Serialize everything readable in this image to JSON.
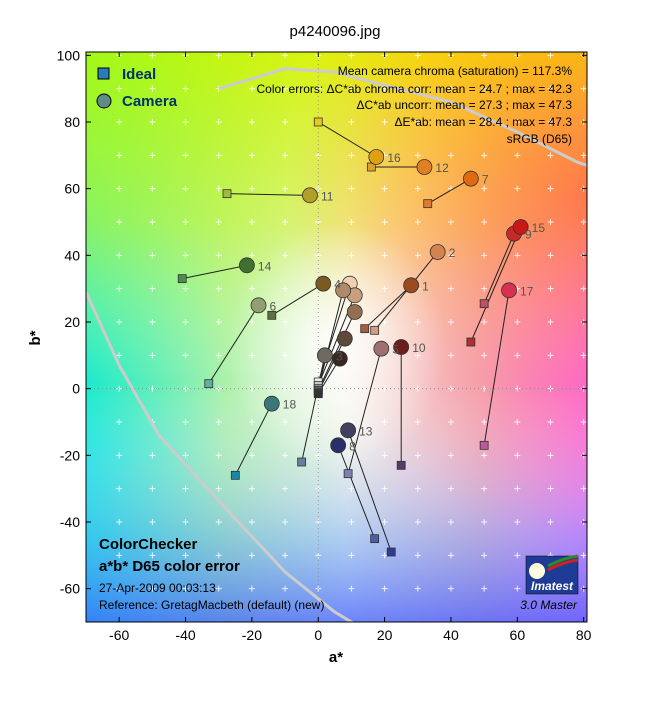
{
  "colors": {
    "ideal_legend": "#2a7abf",
    "camera_legend": "#5f8c84",
    "gamut_line": "#cccccc",
    "logo_blue": "#1e3c96",
    "logo_green": "#2c8a2c",
    "logo_red": "#cc2222"
  },
  "legend": {
    "ideal": "Ideal",
    "camera": "Camera"
  },
  "info": {
    "line1": "Mean camera chroma (saturation) = 117.3%",
    "line2": "Color errors: ΔC*ab chroma corr:  mean = 24.7 ;  max = 42.3",
    "line3": "ΔC*ab uncorr:  mean = 27.3 ;  max = 47.3",
    "line4": "ΔE*ab:  mean = 28.4 ;  max = 47.3",
    "line5": "sRGB (D65)"
  },
  "footer": {
    "title1": "ColorChecker",
    "title2": "a*b* D65 color error",
    "date": "27-Apr-2009 00:03:13",
    "reference": "Reference: GretagMacbeth (default) (new)",
    "version": "3.0  Master",
    "logo": "Imatest"
  },
  "chart_data": {
    "type": "scatter",
    "title": "p4240096.jpg",
    "xlabel": "a*",
    "ylabel": "b*",
    "xlim": [
      -70,
      81
    ],
    "ylim": [
      -70,
      101
    ],
    "xticks": [
      -60,
      -40,
      -20,
      0,
      20,
      40,
      60,
      80
    ],
    "yticks": [
      -60,
      -40,
      -20,
      0,
      20,
      40,
      60,
      80,
      100
    ],
    "grid": "white crosses at 10-unit spacing",
    "legend_position": "top-left",
    "gamut_boundary": [
      [
        [
          -30,
          90
        ],
        [
          -10,
          96
        ],
        [
          5,
          95
        ],
        [
          20,
          91
        ],
        [
          40,
          86
        ],
        [
          60,
          77
        ],
        [
          78,
          68
        ],
        [
          81,
          67
        ]
      ],
      [
        [
          -70,
          29
        ],
        [
          -60,
          7
        ],
        [
          -48,
          -14
        ],
        [
          -38,
          -25
        ],
        [
          -25,
          -39
        ],
        [
          -10,
          -55
        ],
        [
          5,
          -67
        ],
        [
          15,
          -73
        ]
      ]
    ],
    "patches": [
      {
        "id": "1",
        "ideal": [
          14.0,
          18.0
        ],
        "camera": [
          28.0,
          31.0
        ],
        "ideal_color": "#a0603d",
        "camera_color": "#9c4a1e"
      },
      {
        "id": "2",
        "ideal": [
          17.0,
          17.5
        ],
        "camera": [
          36.0,
          41.0
        ],
        "ideal_color": "#d69a80",
        "camera_color": "#d4824f"
      },
      {
        "id": "3",
        "ideal": [
          -5.0,
          -22.0
        ],
        "camera": [
          2.0,
          10.0
        ],
        "ideal_color": "#6780a0",
        "camera_color": "#6e6a60"
      },
      {
        "id": "4",
        "ideal": [
          -14.0,
          22.0
        ],
        "camera": [
          1.5,
          31.5
        ],
        "ideal_color": "#5f7040",
        "camera_color": "#7a5a20"
      },
      {
        "id": "5",
        "ideal": [
          9.0,
          -25.5
        ],
        "camera": [
          19.0,
          12.0
        ],
        "ideal_color": "#8080b0",
        "camera_color": "#a07070"
      },
      {
        "id": "6",
        "ideal": [
          -33.0,
          1.5
        ],
        "camera": [
          -18.0,
          25.0
        ],
        "ideal_color": "#60b0a0",
        "camera_color": "#90a070"
      },
      {
        "id": "7",
        "ideal": [
          33.0,
          55.5
        ],
        "camera": [
          46.0,
          63.0
        ],
        "ideal_color": "#e07a30",
        "camera_color": "#e06a10"
      },
      {
        "id": "8",
        "ideal": [
          17.0,
          -45.0
        ],
        "camera": [
          6.0,
          -17.0
        ],
        "ideal_color": "#4860a8",
        "camera_color": "#28306a"
      },
      {
        "id": "9",
        "ideal": [
          50.0,
          25.5
        ],
        "camera": [
          59.0,
          46.5
        ],
        "ideal_color": "#c05060",
        "camera_color": "#c82828"
      },
      {
        "id": "10",
        "ideal": [
          25.0,
          -23.0
        ],
        "camera": [
          25.0,
          12.5
        ],
        "ideal_color": "#5a3a6a",
        "camera_color": "#6a1e1e"
      },
      {
        "id": "11",
        "ideal": [
          -27.5,
          58.5
        ],
        "camera": [
          -2.5,
          58.0
        ],
        "ideal_color": "#a0bc40",
        "camera_color": "#b0a028"
      },
      {
        "id": "12",
        "ideal": [
          16.0,
          66.5
        ],
        "camera": [
          32.0,
          66.5
        ],
        "ideal_color": "#e0a030",
        "camera_color": "#e08020"
      },
      {
        "id": "13",
        "ideal": [
          22.0,
          -49.0
        ],
        "camera": [
          9.0,
          -12.5
        ],
        "ideal_color": "#303c90",
        "camera_color": "#404060"
      },
      {
        "id": "14",
        "ideal": [
          -41.0,
          33.0
        ],
        "camera": [
          -21.5,
          37.0
        ],
        "ideal_color": "#489048",
        "camera_color": "#407030"
      },
      {
        "id": "15",
        "ideal": [
          46.0,
          14.0
        ],
        "camera": [
          61.0,
          48.5
        ],
        "ideal_color": "#b03030",
        "camera_color": "#c81818"
      },
      {
        "id": "16",
        "ideal": [
          0.0,
          80.0
        ],
        "camera": [
          17.5,
          69.5
        ],
        "ideal_color": "#e8c818",
        "camera_color": "#e0a010"
      },
      {
        "id": "17",
        "ideal": [
          50.0,
          -17.0
        ],
        "camera": [
          57.5,
          29.5
        ],
        "ideal_color": "#c058a0",
        "camera_color": "#d83050"
      },
      {
        "id": "18",
        "ideal": [
          -25.0,
          -26.0
        ],
        "camera": [
          -14.0,
          -4.5
        ],
        "ideal_color": "#1888a8",
        "camera_color": "#3a7878"
      },
      {
        "id": "19",
        "ideal": [
          0.0,
          2.0
        ],
        "camera": [
          9.5,
          31.5
        ],
        "ideal_color": "#f2f2f2",
        "camera_color": "#f0d0b0"
      },
      {
        "id": "20",
        "ideal": [
          0.0,
          1.0
        ],
        "camera": [
          11.0,
          28.0
        ],
        "ideal_color": "#c8c8c8",
        "camera_color": "#c8a080"
      },
      {
        "id": "21",
        "ideal": [
          0.0,
          0.0
        ],
        "camera": [
          7.5,
          29.5
        ],
        "ideal_color": "#a0a0a0",
        "camera_color": "#b08a68"
      },
      {
        "id": "22",
        "ideal": [
          0.0,
          -0.5
        ],
        "camera": [
          11.0,
          23.0
        ],
        "ideal_color": "#7a7a7a",
        "camera_color": "#907050"
      },
      {
        "id": "23",
        "ideal": [
          0.0,
          -1.0
        ],
        "camera": [
          8.0,
          15.0
        ],
        "ideal_color": "#555555",
        "camera_color": "#5e4838"
      },
      {
        "id": "24",
        "ideal": [
          0.0,
          -1.5
        ],
        "camera": [
          6.5,
          9.0
        ],
        "ideal_color": "#343434",
        "camera_color": "#382820"
      }
    ]
  }
}
